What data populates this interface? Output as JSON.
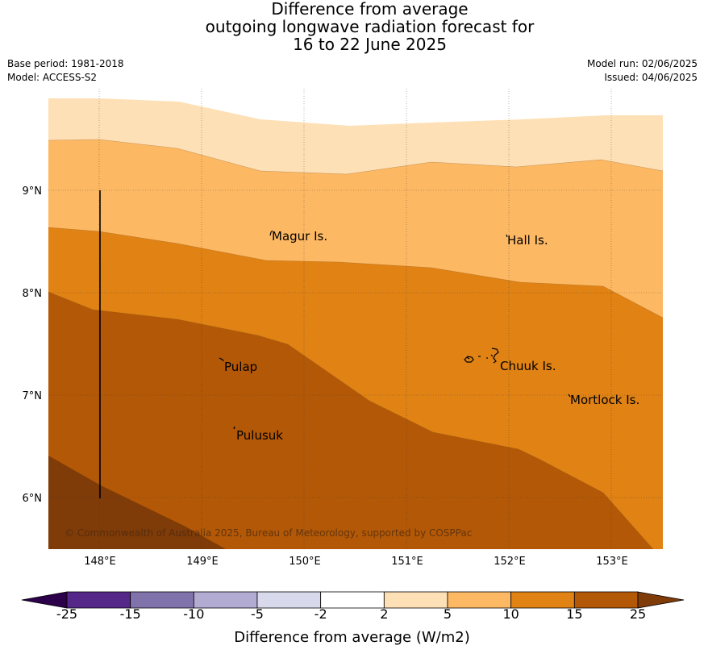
{
  "header": {
    "title_lines": [
      "Difference from average",
      "outgoing longwave radiation forecast for",
      "16 to 22 June 2025"
    ],
    "base_period": "Base period: 1981-2018",
    "model": "Model: ACCESS-S2",
    "model_run": "Model run: 02/06/2025",
    "issued": "Issued: 04/06/2025"
  },
  "map": {
    "lat_labels": [
      "9°N",
      "8°N",
      "7°N",
      "6°N"
    ],
    "lon_labels": [
      "148°E",
      "149°E",
      "150°E",
      "151°E",
      "152°E",
      "153°E"
    ],
    "places": [
      "Magur Is.",
      "Hall Is.",
      "Pulap",
      "Chuuk Is.",
      "Mortlock Is.",
      "Pulusuk"
    ],
    "copyright": "© Commonwealth of Australia 2025, Bureau of Meteorology, supported by COSPPac"
  },
  "colorbar": {
    "labels": [
      "-25",
      "-15",
      "-10",
      "-5",
      "-2",
      "2",
      "5",
      "10",
      "15",
      "25"
    ],
    "colors": [
      "#2d004b",
      "#542788",
      "#8073ac",
      "#b2abd2",
      "#d8daeb",
      "#ffffff",
      "#fee0b6",
      "#fdb863",
      "#e08214",
      "#b35806",
      "#7f3b08"
    ],
    "title": "Difference from average (W/m2)"
  }
}
